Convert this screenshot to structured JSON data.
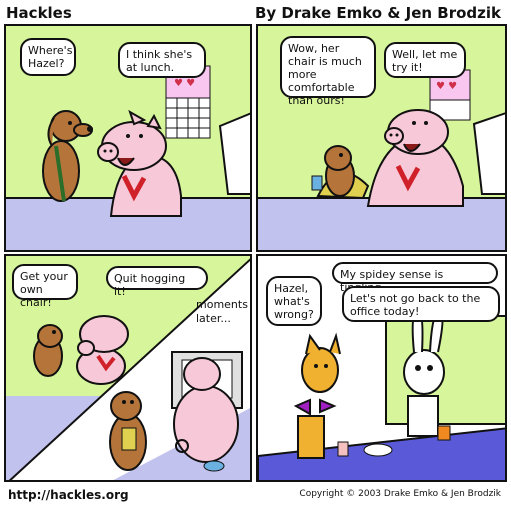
{
  "header": {
    "title": "Hackles",
    "byline": "By Drake Emko & Jen Brodzik"
  },
  "panels": [
    {
      "bubbles": [
        "Where's Hazel?",
        "I think she's at lunch."
      ]
    },
    {
      "bubbles": [
        "Wow, her chair is much more comfortable than ours!",
        "Well, let me try it!"
      ]
    },
    {
      "bubbles": [
        "Get your own chair!",
        "Quit hogging it!"
      ],
      "caption": "moments later..."
    },
    {
      "bubbles": [
        "Hazel, what's wrong?",
        "My spidey sense is tingling...",
        "Let's not go back to the office today!"
      ]
    }
  ],
  "footer": {
    "url": "http://hackles.org",
    "copyright": "Copyright © 2003 Drake Emko & Jen Brodzik"
  }
}
